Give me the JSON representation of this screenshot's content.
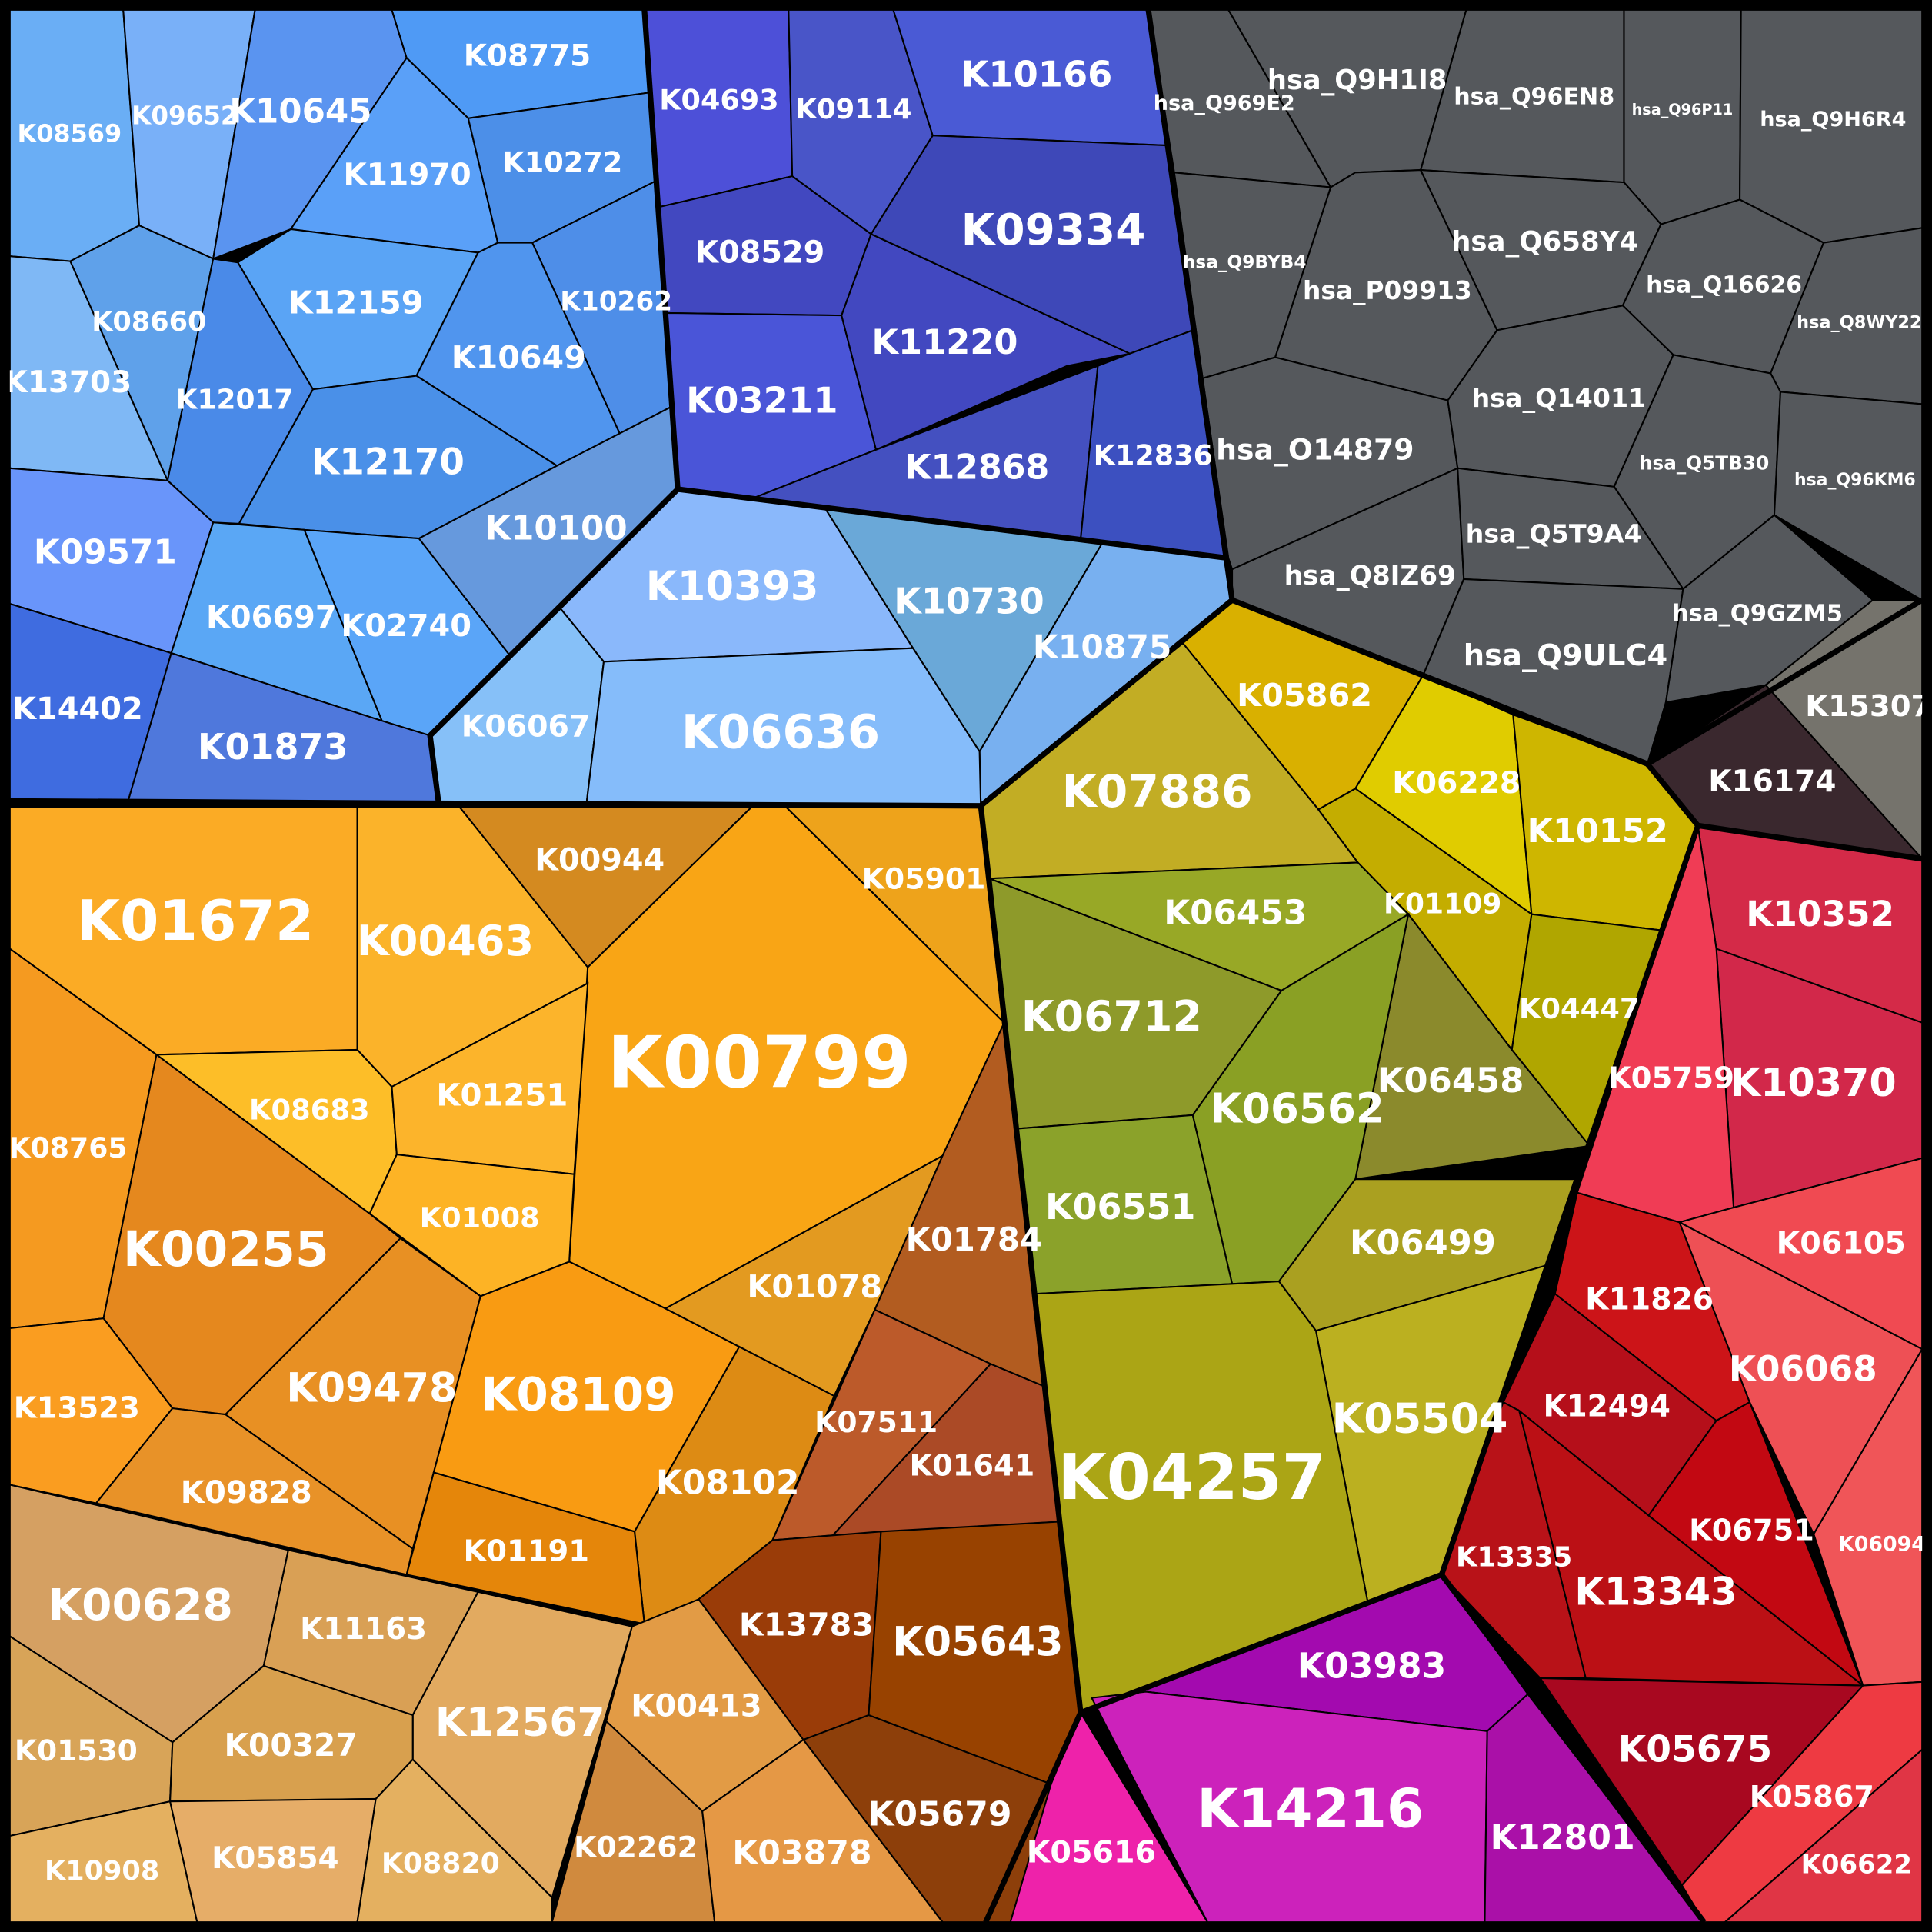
{
  "cells": [
    {
      "label": "K08569",
      "color": "#6aaef5"
    },
    {
      "label": "K09652",
      "color": "#79b0f8"
    },
    {
      "label": "K10645",
      "color": "#5a94f0"
    },
    {
      "label": "K08775",
      "color": "#4f9af5"
    },
    {
      "label": "K11970",
      "color": "#5aa0f8"
    },
    {
      "label": "K10272",
      "color": "#4c8fe8"
    },
    {
      "label": "K08660",
      "color": "#5fa1ea"
    },
    {
      "label": "K13703",
      "color": "#7fb8f5"
    },
    {
      "label": "K12159",
      "color": "#5aa4f5"
    },
    {
      "label": "K10262",
      "color": "#4e8ee8"
    },
    {
      "label": "K10649",
      "color": "#5095ee"
    },
    {
      "label": "K12017",
      "color": "#4a8ae8"
    },
    {
      "label": "K12170",
      "color": "#4a90e8"
    },
    {
      "label": "K10100",
      "color": "#6699dd"
    },
    {
      "label": "K09571",
      "color": "#6995fa"
    },
    {
      "label": "K06697",
      "color": "#5aa7f5"
    },
    {
      "label": "K02740",
      "color": "#5aa5f8"
    },
    {
      "label": "K14402",
      "color": "#3f6ce0"
    },
    {
      "label": "K01873",
      "color": "#4f78dc"
    },
    {
      "label": "K10393",
      "color": "#8ab8fb"
    },
    {
      "label": "K10730",
      "color": "#6aa8d8"
    },
    {
      "label": "K10875",
      "color": "#78b0f0"
    },
    {
      "label": "K06067",
      "color": "#86c0f8"
    },
    {
      "label": "K06636",
      "color": "#85bcfa"
    },
    {
      "label": "K04693",
      "color": "#4d50d8"
    },
    {
      "label": "K09114",
      "color": "#4955c8"
    },
    {
      "label": "K10166",
      "color": "#4a5ad5"
    },
    {
      "label": "K08529",
      "color": "#4248c0"
    },
    {
      "label": "K09334",
      "color": "#3e48b8"
    },
    {
      "label": "K03211",
      "color": "#4a55d8"
    },
    {
      "label": "K11220",
      "color": "#4248c0"
    },
    {
      "label": "K12868",
      "color": "#4450c0"
    },
    {
      "label": "K12836",
      "color": "#3c50c0"
    },
    {
      "label": "hsa_Q969E2",
      "color": "#55585c"
    },
    {
      "label": "hsa_Q9H1I8",
      "color": "#55585c"
    },
    {
      "label": "hsa_Q96EN8",
      "color": "#55585c"
    },
    {
      "label": "hsa_Q96P11",
      "color": "#55585c"
    },
    {
      "label": "hsa_Q9H6R4",
      "color": "#55585c"
    },
    {
      "label": "hsa_Q9BYB4",
      "color": "#55585c"
    },
    {
      "label": "hsa_P09913",
      "color": "#55585c"
    },
    {
      "label": "hsa_Q658Y4",
      "color": "#55585c"
    },
    {
      "label": "hsa_Q16626",
      "color": "#55585c"
    },
    {
      "label": "hsa_Q8WY22",
      "color": "#55585c"
    },
    {
      "label": "hsa_O14879",
      "color": "#55585c"
    },
    {
      "label": "hsa_Q14011",
      "color": "#55585c"
    },
    {
      "label": "hsa_Q5TB30",
      "color": "#55585c"
    },
    {
      "label": "hsa_Q96KM6",
      "color": "#55585c"
    },
    {
      "label": "hsa_Q8IZ69",
      "color": "#55585c"
    },
    {
      "label": "hsa_Q5T9A4",
      "color": "#55585c"
    },
    {
      "label": "hsa_Q9ULC4",
      "color": "#55585c"
    },
    {
      "label": "hsa_Q9GZM5",
      "color": "#55585c"
    },
    {
      "label": "K15307",
      "color": "#75736c"
    },
    {
      "label": "K16174",
      "color": "#3a282e"
    },
    {
      "label": "K05862",
      "color": "#d9b000"
    },
    {
      "label": "K07886",
      "color": "#c2ad24"
    },
    {
      "label": "K06228",
      "color": "#e0cc00"
    },
    {
      "label": "K10152",
      "color": "#ceb600"
    },
    {
      "label": "K01109",
      "color": "#c4ad00"
    },
    {
      "label": "K04447",
      "color": "#b0a600"
    },
    {
      "label": "K06453",
      "color": "#98a826"
    },
    {
      "label": "K06712",
      "color": "#8e9a2a"
    },
    {
      "label": "K06458",
      "color": "#8b8a2c"
    },
    {
      "label": "K06562",
      "color": "#8aa024"
    },
    {
      "label": "K06551",
      "color": "#8ba22a"
    },
    {
      "label": "K06499",
      "color": "#aaa020"
    },
    {
      "label": "K05504",
      "color": "#bbb020"
    },
    {
      "label": "K04257",
      "color": "#aba515"
    },
    {
      "label": "K10352",
      "color": "#d42a48"
    },
    {
      "label": "K10370",
      "color": "#d2284a"
    },
    {
      "label": "K05759",
      "color": "#f03c55"
    },
    {
      "label": "K06105",
      "color": "#f04a52"
    },
    {
      "label": "K06068",
      "color": "#ee5055"
    },
    {
      "label": "K06094",
      "color": "#f05558"
    },
    {
      "label": "K11826",
      "color": "#cc1418"
    },
    {
      "label": "K12494",
      "color": "#b50f1a"
    },
    {
      "label": "K06751",
      "color": "#c20812"
    },
    {
      "label": "K13335",
      "color": "#b81218"
    },
    {
      "label": "K13343",
      "color": "#bb1015"
    },
    {
      "label": "K05675",
      "color": "#a80820"
    },
    {
      "label": "K05867",
      "color": "#ee3a42"
    },
    {
      "label": "K06622",
      "color": "#e03545"
    },
    {
      "label": "K03983",
      "color": "#a30aaf"
    },
    {
      "label": "K05616",
      "color": "#ee22aa"
    },
    {
      "label": "K14216",
      "color": "#cc22bb"
    },
    {
      "label": "K12801",
      "color": "#aa10a8"
    },
    {
      "label": "K01672",
      "color": "#fbab25"
    },
    {
      "label": "K00463",
      "color": "#fbb32a"
    },
    {
      "label": "K00944",
      "color": "#d48a20"
    },
    {
      "label": "K00799",
      "color": "#f9a515"
    },
    {
      "label": "K05901",
      "color": "#eea31b"
    },
    {
      "label": "K08683",
      "color": "#fdbe28"
    },
    {
      "label": "K01251",
      "color": "#fcb42b"
    },
    {
      "label": "K01008",
      "color": "#fdb325"
    },
    {
      "label": "K08765",
      "color": "#f59a20"
    },
    {
      "label": "K00255",
      "color": "#e5881e"
    },
    {
      "label": "K13523",
      "color": "#fa9d20"
    },
    {
      "label": "K09478",
      "color": "#e89023"
    },
    {
      "label": "K09828",
      "color": "#e89228"
    },
    {
      "label": "K08109",
      "color": "#f99b12"
    },
    {
      "label": "K01078",
      "color": "#e39a20"
    },
    {
      "label": "K08102",
      "color": "#dd8b14"
    },
    {
      "label": "K01191",
      "color": "#e5860a"
    },
    {
      "label": "K01784",
      "color": "#b25c20"
    },
    {
      "label": "K07511",
      "color": "#bc5a2a"
    },
    {
      "label": "K01641",
      "color": "#ab4a26"
    },
    {
      "label": "K13783",
      "color": "#9a3c08"
    },
    {
      "label": "K05643",
      "color": "#984200"
    },
    {
      "label": "K05679",
      "color": "#8d3f0a"
    },
    {
      "label": "K00628",
      "color": "#d5a062"
    },
    {
      "label": "K11163",
      "color": "#d9a055"
    },
    {
      "label": "K12567",
      "color": "#e2aa60"
    },
    {
      "label": "K01530",
      "color": "#d8a458"
    },
    {
      "label": "K00327",
      "color": "#d8a04e"
    },
    {
      "label": "K10908",
      "color": "#e4b060"
    },
    {
      "label": "K05854",
      "color": "#e6ad68"
    },
    {
      "label": "K08820",
      "color": "#e4b060"
    },
    {
      "label": "K00413",
      "color": "#e29b45"
    },
    {
      "label": "K02262",
      "color": "#d08a3e"
    },
    {
      "label": "K03878",
      "color": "#e59845"
    }
  ]
}
